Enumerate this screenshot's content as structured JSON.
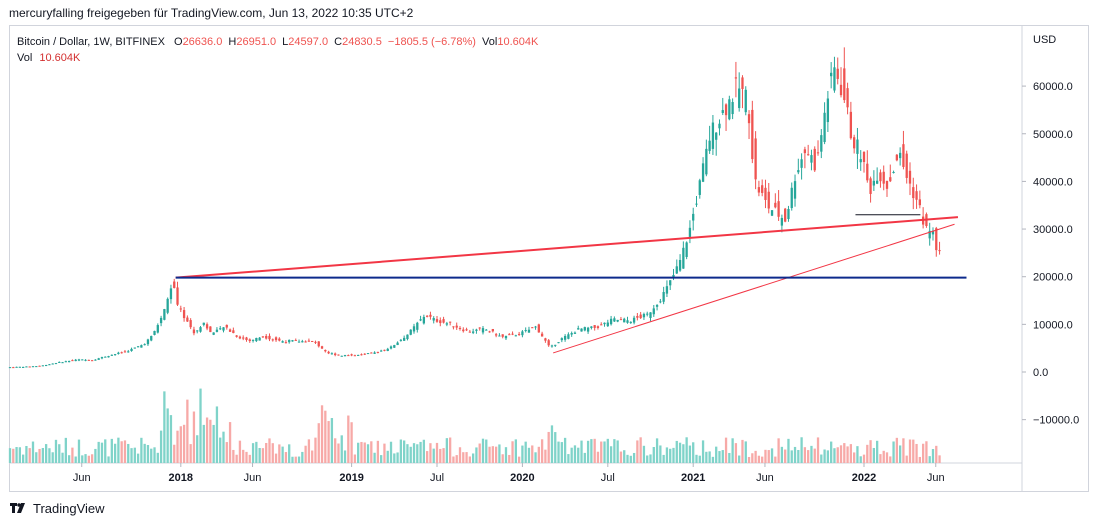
{
  "caption": "mercuryfalling freigegeben für TradingView.com, Jun 13, 2022 10:35 UTC+2",
  "legend": {
    "symbol": "Bitcoin / Dollar, 1W, BITFINEX",
    "o_label": "O",
    "o_value": "26636.0",
    "h_label": "H",
    "h_value": "26951.0",
    "l_label": "L",
    "l_value": "24597.0",
    "c_label": "C",
    "c_value": "24830.5",
    "change": "−1805.5 (−6.78%)",
    "vol_label": "Vol",
    "vol_value": "10.604K",
    "vol2_label": "Vol",
    "vol2_value": "10.604K"
  },
  "brand": "TradingView",
  "colors": {
    "up": "#26a69a",
    "down": "#ef5350",
    "up_vol": "#7fd3c9",
    "down_vol": "#f7a9a7",
    "trendline": "#f23645",
    "horizontal": "#0d2a8c"
  },
  "chart_data": {
    "type": "candlestick",
    "currency_label": "USD",
    "y_ticks": [
      "60000.0",
      "50000.0",
      "40000.0",
      "30000.0",
      "20000.0",
      "10000.0",
      "0.0",
      "−10000.0"
    ],
    "x_ticks": [
      {
        "label": "Jun",
        "t": 2017.42,
        "bold": false
      },
      {
        "label": "2018",
        "t": 2018.0,
        "bold": true
      },
      {
        "label": "Jun",
        "t": 2018.42,
        "bold": false
      },
      {
        "label": "2019",
        "t": 2019.0,
        "bold": true
      },
      {
        "label": "Jul",
        "t": 2019.5,
        "bold": false
      },
      {
        "label": "2020",
        "t": 2020.0,
        "bold": true
      },
      {
        "label": "Jul",
        "t": 2020.5,
        "bold": false
      },
      {
        "label": "2021",
        "t": 2021.0,
        "bold": true
      },
      {
        "label": "Jun",
        "t": 2021.42,
        "bold": false
      },
      {
        "label": "2022",
        "t": 2022.0,
        "bold": true
      },
      {
        "label": "Jun",
        "t": 2022.42,
        "bold": false
      }
    ],
    "price_path": [
      [
        2017.0,
        1000
      ],
      [
        2017.1,
        1100
      ],
      [
        2017.2,
        1300
      ],
      [
        2017.3,
        2000
      ],
      [
        2017.42,
        2600
      ],
      [
        2017.5,
        2500
      ],
      [
        2017.6,
        3500
      ],
      [
        2017.7,
        4300
      ],
      [
        2017.8,
        5800
      ],
      [
        2017.85,
        7500
      ],
      [
        2017.9,
        11000
      ],
      [
        2017.94,
        15000
      ],
      [
        2017.97,
        19000
      ],
      [
        2018.0,
        14000
      ],
      [
        2018.05,
        11000
      ],
      [
        2018.1,
        8000
      ],
      [
        2018.15,
        10500
      ],
      [
        2018.2,
        8000
      ],
      [
        2018.28,
        9500
      ],
      [
        2018.35,
        7500
      ],
      [
        2018.42,
        6500
      ],
      [
        2018.5,
        7500
      ],
      [
        2018.6,
        6500
      ],
      [
        2018.7,
        6500
      ],
      [
        2018.8,
        6300
      ],
      [
        2018.88,
        4000
      ],
      [
        2018.95,
        3500
      ],
      [
        2019.05,
        3500
      ],
      [
        2019.15,
        4000
      ],
      [
        2019.25,
        5200
      ],
      [
        2019.35,
        8000
      ],
      [
        2019.45,
        12000
      ],
      [
        2019.5,
        11000
      ],
      [
        2019.6,
        10000
      ],
      [
        2019.7,
        8500
      ],
      [
        2019.8,
        9000
      ],
      [
        2019.9,
        7300
      ],
      [
        2020.0,
        8000
      ],
      [
        2020.1,
        9500
      ],
      [
        2020.18,
        5000
      ],
      [
        2020.25,
        7000
      ],
      [
        2020.35,
        9000
      ],
      [
        2020.45,
        9300
      ],
      [
        2020.55,
        11000
      ],
      [
        2020.65,
        10800
      ],
      [
        2020.75,
        12000
      ],
      [
        2020.82,
        15000
      ],
      [
        2020.88,
        18500
      ],
      [
        2020.94,
        23000
      ],
      [
        2021.0,
        30000
      ],
      [
        2021.05,
        38000
      ],
      [
        2021.12,
        50000
      ],
      [
        2021.2,
        55000
      ],
      [
        2021.28,
        60000
      ],
      [
        2021.34,
        57000
      ],
      [
        2021.38,
        40000
      ],
      [
        2021.45,
        35000
      ],
      [
        2021.52,
        33000
      ],
      [
        2021.56,
        32000
      ],
      [
        2021.62,
        42000
      ],
      [
        2021.68,
        47000
      ],
      [
        2021.74,
        43000
      ],
      [
        2021.8,
        57000
      ],
      [
        2021.85,
        64000
      ],
      [
        2021.9,
        58000
      ],
      [
        2021.95,
        49000
      ],
      [
        2022.0,
        46000
      ],
      [
        2022.05,
        38000
      ],
      [
        2022.1,
        42000
      ],
      [
        2022.16,
        39000
      ],
      [
        2022.22,
        46000
      ],
      [
        2022.28,
        40000
      ],
      [
        2022.34,
        35000
      ],
      [
        2022.38,
        30000
      ],
      [
        2022.42,
        29500
      ],
      [
        2022.45,
        25000
      ]
    ],
    "lines": [
      {
        "kind": "trendline-thick",
        "from": [
          2017.97,
          19800
        ],
        "to": [
          2022.55,
          32500
        ]
      },
      {
        "kind": "trendline-thin",
        "from": [
          2020.18,
          4000
        ],
        "to": [
          2022.53,
          31000
        ]
      },
      {
        "kind": "horizontal",
        "from": [
          2017.97,
          19800
        ],
        "to": [
          2022.6,
          19800
        ]
      },
      {
        "kind": "short-horizontal",
        "from": [
          2021.95,
          33000
        ],
        "to": [
          2022.33,
          33000
        ]
      }
    ]
  }
}
